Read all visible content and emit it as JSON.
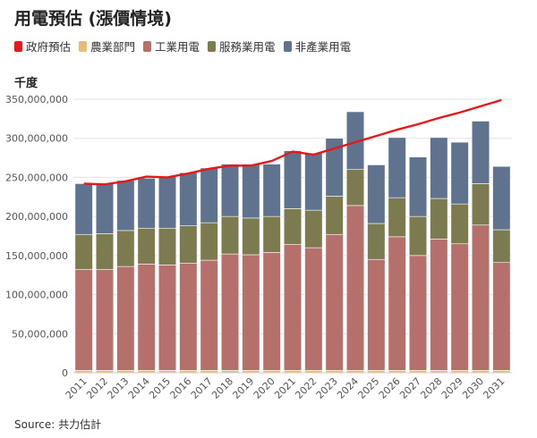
{
  "title": "用電預估 (漲價情境)",
  "unit_label": "千度",
  "source": "Source: 共力估計",
  "colors": {
    "forecast": "#e31a1c",
    "agriculture": "#e6bd7a",
    "industrial": "#b5706b",
    "services": "#7c7a4f",
    "residential": "#5f738e"
  },
  "legend": [
    {
      "key": "forecast",
      "label": "政府預估"
    },
    {
      "key": "agriculture",
      "label": "農業部門"
    },
    {
      "key": "industrial",
      "label": "工業用電"
    },
    {
      "key": "services",
      "label": "服務業用電"
    },
    {
      "key": "residential",
      "label": "非產業用電"
    }
  ],
  "chart_data": {
    "type": "bar",
    "stacked": true,
    "categories": [
      "2011",
      "2012",
      "2013",
      "2014",
      "2015",
      "2016",
      "2017",
      "2018",
      "2019",
      "2020",
      "2021",
      "2022",
      "2023",
      "2024",
      "2025",
      "2026",
      "2027",
      "2028",
      "2029",
      "2030",
      "2031"
    ],
    "series": [
      {
        "name": "農業部門",
        "color_key": "agriculture",
        "values": [
          3000000,
          3000000,
          3000000,
          3000000,
          3000000,
          3000000,
          3000000,
          3000000,
          3000000,
          3000000,
          3000000,
          3000000,
          3000000,
          3000000,
          3000000,
          3000000,
          3000000,
          3000000,
          3000000,
          3000000,
          3000000
        ]
      },
      {
        "name": "工業用電",
        "color_key": "industrial",
        "values": [
          129000000,
          129000000,
          133000000,
          136000000,
          135000000,
          137000000,
          141000000,
          149000000,
          148000000,
          151000000,
          161000000,
          157000000,
          174000000,
          211000000,
          142000000,
          171000000,
          147000000,
          168000000,
          162000000,
          186000000,
          138000000
        ]
      },
      {
        "name": "服務業用電",
        "color_key": "services",
        "values": [
          45000000,
          46000000,
          46000000,
          46000000,
          47000000,
          48000000,
          48000000,
          48000000,
          47000000,
          46000000,
          46000000,
          48000000,
          49000000,
          46000000,
          46000000,
          50000000,
          50000000,
          52000000,
          51000000,
          53000000,
          42000000
        ]
      },
      {
        "name": "非產業用電",
        "color_key": "residential",
        "values": [
          65000000,
          64000000,
          64000000,
          64000000,
          66000000,
          68000000,
          70000000,
          67000000,
          69000000,
          67000000,
          74000000,
          73000000,
          74000000,
          74000000,
          75000000,
          77000000,
          76000000,
          78000000,
          79000000,
          80000000,
          81000000
        ]
      }
    ],
    "line": {
      "name": "政府預估",
      "color_key": "forecast",
      "values": [
        242000000,
        241000000,
        245000000,
        251000000,
        250000000,
        255000000,
        261000000,
        265000000,
        265000000,
        271000000,
        283000000,
        279000000,
        287000000,
        295000000,
        303000000,
        311000000,
        318000000,
        326000000,
        333000000,
        341000000,
        349000000
      ]
    },
    "ylim": [
      0,
      350000000
    ],
    "yticks": [
      0,
      50000000,
      100000000,
      150000000,
      200000000,
      250000000,
      300000000,
      350000000
    ],
    "ylabel": "千度",
    "xlabel": "",
    "grid": true
  }
}
